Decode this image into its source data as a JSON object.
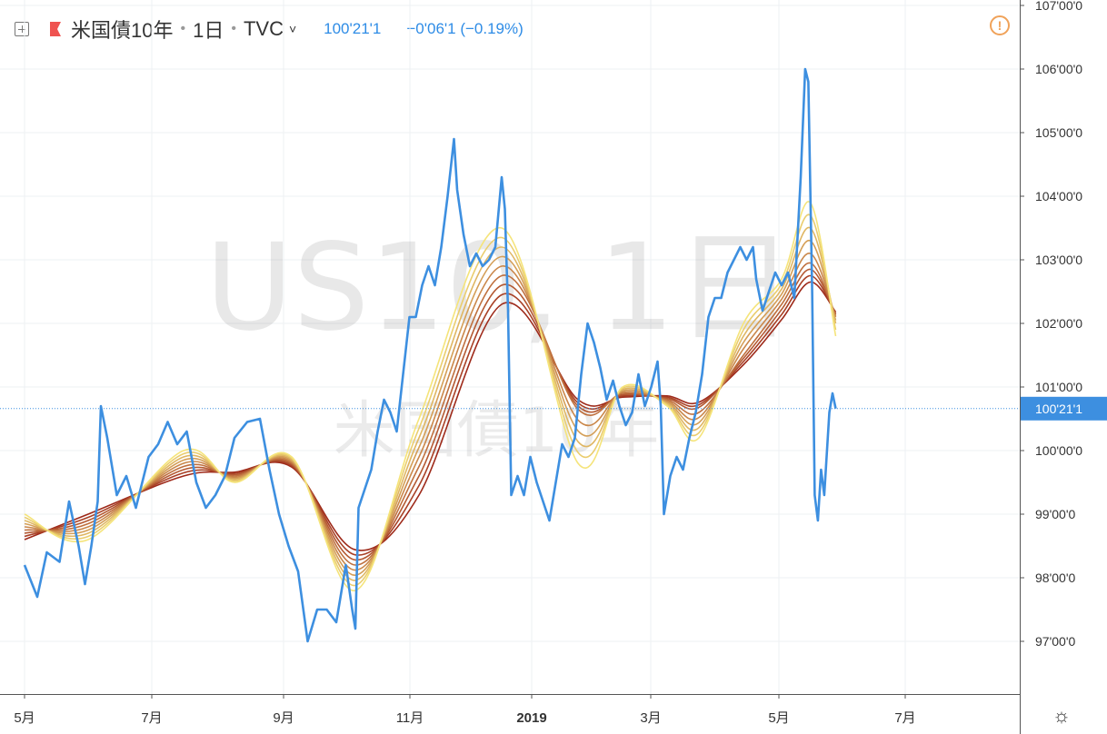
{
  "header": {
    "symbol": "米国債10年",
    "interval": "1日",
    "exchange": "TVC",
    "last_price": "100'21'1",
    "change": "−0'06'1 (−0.19%)",
    "flag_color": "#ef5350",
    "add_icon": "plus-square-icon",
    "interval_menu_icon": "chevron-down-icon"
  },
  "alert_icon": "exclamation-circle-icon",
  "settings_icon": "gear-icon",
  "watermark": {
    "line1": "US10, 1日",
    "line2": "米国債10年"
  },
  "colors": {
    "price_line": "#3d8fe0",
    "last_price_badge": "#3d8fe0",
    "alert": "#f0a259",
    "ribbon_fast": "#f5e47a",
    "ribbon_slow": "#9e2a1a"
  },
  "chart_data": {
    "type": "line",
    "x_axis_labels": [
      "5月",
      "7月",
      "9月",
      "11月",
      "2019",
      "3月",
      "5月",
      "7月"
    ],
    "y_axis_labels": [
      "97'00'0",
      "98'00'0",
      "99'00'0",
      "100'00'0",
      "101'00'0",
      "102'00'0",
      "103'00'0",
      "104'00'0",
      "105'00'0",
      "106'00'0",
      "107'00'0"
    ],
    "ylim": [
      95.8,
      107.1
    ],
    "last_price_value": 100.66,
    "last_price_label": "100'21'1",
    "grid": true,
    "price_series": [
      [
        0.0,
        98.2
      ],
      [
        0.2,
        97.7
      ],
      [
        0.35,
        98.4
      ],
      [
        0.55,
        98.25
      ],
      [
        0.7,
        99.2
      ],
      [
        0.85,
        98.5
      ],
      [
        0.95,
        97.9
      ],
      [
        1.05,
        98.5
      ],
      [
        1.15,
        99.2
      ],
      [
        1.2,
        100.7
      ],
      [
        1.3,
        100.2
      ],
      [
        1.45,
        99.3
      ],
      [
        1.6,
        99.6
      ],
      [
        1.75,
        99.1
      ],
      [
        1.95,
        99.9
      ],
      [
        2.1,
        100.1
      ],
      [
        2.25,
        100.45
      ],
      [
        2.4,
        100.1
      ],
      [
        2.55,
        100.3
      ],
      [
        2.7,
        99.5
      ],
      [
        2.85,
        99.1
      ],
      [
        3.0,
        99.3
      ],
      [
        3.15,
        99.6
      ],
      [
        3.3,
        100.2
      ],
      [
        3.5,
        100.45
      ],
      [
        3.7,
        100.5
      ],
      [
        3.85,
        99.7
      ],
      [
        4.0,
        99.0
      ],
      [
        4.15,
        98.5
      ],
      [
        4.3,
        98.1
      ],
      [
        4.45,
        97.0
      ],
      [
        4.6,
        97.5
      ],
      [
        4.75,
        97.5
      ],
      [
        4.9,
        97.3
      ],
      [
        5.05,
        98.2
      ],
      [
        5.15,
        97.5
      ],
      [
        5.2,
        97.2
      ],
      [
        5.25,
        99.1
      ],
      [
        5.35,
        99.4
      ],
      [
        5.45,
        99.7
      ],
      [
        5.55,
        100.3
      ],
      [
        5.65,
        100.8
      ],
      [
        5.75,
        100.6
      ],
      [
        5.85,
        100.3
      ],
      [
        5.95,
        101.2
      ],
      [
        6.05,
        102.1
      ],
      [
        6.15,
        102.1
      ],
      [
        6.25,
        102.6
      ],
      [
        6.35,
        102.9
      ],
      [
        6.45,
        102.6
      ],
      [
        6.55,
        103.2
      ],
      [
        6.65,
        104.0
      ],
      [
        6.75,
        104.9
      ],
      [
        6.8,
        104.1
      ],
      [
        6.9,
        103.4
      ],
      [
        7.0,
        102.9
      ],
      [
        7.1,
        103.1
      ],
      [
        7.2,
        102.9
      ],
      [
        7.3,
        103.0
      ],
      [
        7.4,
        103.2
      ],
      [
        7.5,
        104.3
      ],
      [
        7.55,
        103.8
      ],
      [
        7.6,
        102.2
      ],
      [
        7.65,
        99.3
      ],
      [
        7.75,
        99.6
      ],
      [
        7.85,
        99.3
      ],
      [
        7.95,
        99.9
      ],
      [
        8.05,
        99.5
      ],
      [
        8.15,
        99.2
      ],
      [
        8.25,
        98.9
      ],
      [
        8.35,
        99.5
      ],
      [
        8.45,
        100.1
      ],
      [
        8.55,
        99.9
      ],
      [
        8.65,
        100.2
      ],
      [
        8.75,
        101.2
      ],
      [
        8.85,
        102.0
      ],
      [
        8.95,
        101.7
      ],
      [
        9.05,
        101.3
      ],
      [
        9.15,
        100.8
      ],
      [
        9.25,
        101.1
      ],
      [
        9.35,
        100.7
      ],
      [
        9.45,
        100.4
      ],
      [
        9.55,
        100.6
      ],
      [
        9.65,
        101.2
      ],
      [
        9.75,
        100.7
      ],
      [
        9.85,
        101.0
      ],
      [
        9.95,
        101.4
      ],
      [
        10.0,
        100.7
      ],
      [
        10.05,
        99.0
      ],
      [
        10.15,
        99.6
      ],
      [
        10.25,
        99.9
      ],
      [
        10.35,
        99.7
      ],
      [
        10.45,
        100.2
      ],
      [
        10.55,
        100.6
      ],
      [
        10.65,
        101.2
      ],
      [
        10.75,
        102.1
      ],
      [
        10.85,
        102.4
      ],
      [
        10.95,
        102.4
      ],
      [
        11.05,
        102.8
      ],
      [
        11.15,
        103.0
      ],
      [
        11.25,
        103.2
      ],
      [
        11.35,
        103.0
      ],
      [
        11.45,
        103.2
      ],
      [
        11.5,
        102.7
      ],
      [
        11.6,
        102.2
      ],
      [
        11.7,
        102.5
      ],
      [
        11.8,
        102.8
      ],
      [
        11.9,
        102.6
      ],
      [
        12.0,
        102.8
      ],
      [
        12.1,
        102.4
      ],
      [
        12.2,
        104.3
      ],
      [
        12.27,
        106.0
      ],
      [
        12.32,
        105.8
      ],
      [
        12.38,
        102.5
      ],
      [
        12.42,
        99.3
      ],
      [
        12.47,
        98.9
      ],
      [
        12.52,
        99.7
      ],
      [
        12.57,
        99.3
      ],
      [
        12.65,
        100.6
      ],
      [
        12.7,
        100.9
      ],
      [
        12.75,
        100.66
      ]
    ],
    "ribbon": {
      "label_note": "EMA ribbon bands, fastest to slowest",
      "bands": [
        [
          [
            0.0,
            99.0
          ],
          [
            1.0,
            98.6
          ],
          [
            2.5,
            100.0
          ],
          [
            3.3,
            99.5
          ],
          [
            4.2,
            99.9
          ],
          [
            5.2,
            97.8
          ],
          [
            6.2,
            100.5
          ],
          [
            7.5,
            103.5
          ],
          [
            8.7,
            99.8
          ],
          [
            9.4,
            101.0
          ],
          [
            10.1,
            100.7
          ],
          [
            10.6,
            100.2
          ],
          [
            11.3,
            102.0
          ],
          [
            11.9,
            102.7
          ],
          [
            12.35,
            103.9
          ],
          [
            12.75,
            101.8
          ]
        ],
        [
          [
            0.0,
            98.95
          ],
          [
            1.0,
            98.65
          ],
          [
            2.5,
            99.95
          ],
          [
            3.3,
            99.52
          ],
          [
            4.2,
            99.88
          ],
          [
            5.2,
            97.88
          ],
          [
            6.2,
            100.35
          ],
          [
            7.5,
            103.35
          ],
          [
            8.7,
            99.97
          ],
          [
            9.4,
            100.98
          ],
          [
            10.1,
            100.72
          ],
          [
            10.6,
            100.28
          ],
          [
            11.3,
            101.9
          ],
          [
            11.9,
            102.62
          ],
          [
            12.35,
            103.7
          ],
          [
            12.75,
            101.9
          ]
        ],
        [
          [
            0.0,
            98.9
          ],
          [
            1.0,
            98.7
          ],
          [
            2.5,
            99.9
          ],
          [
            3.3,
            99.54
          ],
          [
            4.2,
            99.86
          ],
          [
            5.2,
            97.96
          ],
          [
            6.2,
            100.2
          ],
          [
            7.5,
            103.2
          ],
          [
            8.7,
            100.14
          ],
          [
            9.4,
            100.96
          ],
          [
            10.1,
            100.74
          ],
          [
            10.6,
            100.36
          ],
          [
            11.3,
            101.8
          ],
          [
            11.9,
            102.54
          ],
          [
            12.35,
            103.5
          ],
          [
            12.75,
            102.0
          ]
        ],
        [
          [
            0.0,
            98.85
          ],
          [
            1.0,
            98.75
          ],
          [
            2.5,
            99.85
          ],
          [
            3.3,
            99.56
          ],
          [
            4.2,
            99.84
          ],
          [
            5.2,
            98.04
          ],
          [
            6.2,
            100.05
          ],
          [
            7.5,
            103.05
          ],
          [
            8.7,
            100.31
          ],
          [
            9.4,
            100.94
          ],
          [
            10.1,
            100.76
          ],
          [
            10.6,
            100.44
          ],
          [
            11.3,
            101.7
          ],
          [
            11.9,
            102.46
          ],
          [
            12.35,
            103.3
          ],
          [
            12.75,
            102.05
          ]
        ],
        [
          [
            0.0,
            98.8
          ],
          [
            1.0,
            98.8
          ],
          [
            2.5,
            99.8
          ],
          [
            3.3,
            99.58
          ],
          [
            4.2,
            99.82
          ],
          [
            5.2,
            98.12
          ],
          [
            6.2,
            99.9
          ],
          [
            7.5,
            102.9
          ],
          [
            8.7,
            100.48
          ],
          [
            9.4,
            100.92
          ],
          [
            10.1,
            100.78
          ],
          [
            10.6,
            100.52
          ],
          [
            11.3,
            101.6
          ],
          [
            11.9,
            102.38
          ],
          [
            12.35,
            103.1
          ],
          [
            12.75,
            102.1
          ]
        ],
        [
          [
            0.0,
            98.75
          ],
          [
            1.0,
            98.85
          ],
          [
            2.5,
            99.75
          ],
          [
            3.3,
            99.6
          ],
          [
            4.2,
            99.8
          ],
          [
            5.2,
            98.2
          ],
          [
            6.2,
            99.75
          ],
          [
            7.5,
            102.75
          ],
          [
            8.7,
            100.65
          ],
          [
            9.4,
            100.9
          ],
          [
            10.1,
            100.8
          ],
          [
            10.6,
            100.6
          ],
          [
            11.3,
            101.5
          ],
          [
            11.9,
            102.3
          ],
          [
            12.35,
            102.95
          ],
          [
            12.75,
            102.12
          ]
        ],
        [
          [
            0.0,
            98.7
          ],
          [
            1.0,
            98.9
          ],
          [
            2.5,
            99.7
          ],
          [
            3.3,
            99.62
          ],
          [
            4.2,
            99.78
          ],
          [
            5.2,
            98.28
          ],
          [
            6.2,
            99.6
          ],
          [
            7.5,
            102.6
          ],
          [
            8.7,
            100.7
          ],
          [
            9.4,
            100.88
          ],
          [
            10.1,
            100.82
          ],
          [
            10.6,
            100.68
          ],
          [
            11.3,
            101.45
          ],
          [
            11.9,
            102.22
          ],
          [
            12.35,
            102.85
          ],
          [
            12.75,
            102.14
          ]
        ],
        [
          [
            0.0,
            98.65
          ],
          [
            1.0,
            98.95
          ],
          [
            2.5,
            99.65
          ],
          [
            3.3,
            99.64
          ],
          [
            4.2,
            99.76
          ],
          [
            5.2,
            98.36
          ],
          [
            6.2,
            99.45
          ],
          [
            7.5,
            102.45
          ],
          [
            8.7,
            100.75
          ],
          [
            9.4,
            100.86
          ],
          [
            10.1,
            100.84
          ],
          [
            10.6,
            100.72
          ],
          [
            11.3,
            101.4
          ],
          [
            11.9,
            102.14
          ],
          [
            12.35,
            102.75
          ],
          [
            12.75,
            102.16
          ]
        ],
        [
          [
            0.0,
            98.6
          ],
          [
            1.0,
            99.0
          ],
          [
            2.5,
            99.6
          ],
          [
            3.3,
            99.66
          ],
          [
            4.2,
            99.74
          ],
          [
            5.2,
            98.44
          ],
          [
            6.2,
            99.3
          ],
          [
            7.5,
            102.3
          ],
          [
            8.7,
            100.8
          ],
          [
            9.4,
            100.84
          ],
          [
            10.1,
            100.86
          ],
          [
            10.6,
            100.76
          ],
          [
            11.3,
            101.35
          ],
          [
            11.9,
            102.06
          ],
          [
            12.35,
            102.65
          ],
          [
            12.75,
            102.18
          ]
        ]
      ]
    }
  }
}
